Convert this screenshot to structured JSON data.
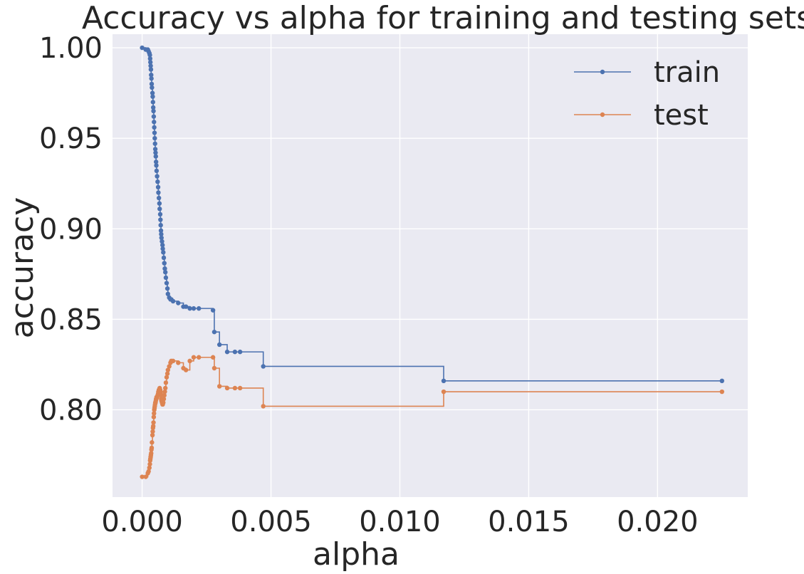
{
  "chart_data": {
    "type": "line",
    "title": "Accuracy vs alpha for training and testing sets",
    "xlabel": "alpha",
    "ylabel": "accuracy",
    "xlim": [
      -0.00115,
      0.0235
    ],
    "ylim": [
      0.7518,
      1.0075
    ],
    "xticks": [
      0.0,
      0.005,
      0.01,
      0.015,
      0.02
    ],
    "xtick_labels": [
      "0.000",
      "0.005",
      "0.010",
      "0.015",
      "0.020"
    ],
    "yticks": [
      0.8,
      0.85,
      0.9,
      0.95,
      1.0
    ],
    "ytick_labels": [
      "0.80",
      "0.85",
      "0.90",
      "0.95",
      "1.00"
    ],
    "grid": true,
    "legend_position": "top-right",
    "drawstyle": "steps-post",
    "series": [
      {
        "name": "train",
        "color": "#4c72b0",
        "x": [
          0.0,
          0.00014,
          0.00022,
          0.00025,
          0.00028,
          0.0003,
          0.00031,
          0.00032,
          0.00033,
          0.00034,
          0.00035,
          0.00036,
          0.00037,
          0.00038,
          0.0004,
          0.00041,
          0.00042,
          0.00043,
          0.00044,
          0.00045,
          0.00046,
          0.00047,
          0.00048,
          0.00049,
          0.0005,
          0.00051,
          0.00052,
          0.00053,
          0.00054,
          0.00055,
          0.00056,
          0.00058,
          0.0006,
          0.00062,
          0.00063,
          0.00065,
          0.00067,
          0.00068,
          0.0007,
          0.00071,
          0.00072,
          0.00073,
          0.00074,
          0.00075,
          0.00077,
          0.00079,
          0.0008,
          0.00082,
          0.00084,
          0.00086,
          0.00088,
          0.0009,
          0.00092,
          0.00095,
          0.00098,
          0.001,
          0.00105,
          0.0011,
          0.00113,
          0.0012,
          0.0014,
          0.0016,
          0.0017,
          0.00185,
          0.002,
          0.0022,
          0.00275,
          0.0028,
          0.003,
          0.0033,
          0.0036,
          0.0038,
          0.0047,
          0.0117,
          0.0225
        ],
        "y": [
          1.0,
          0.999,
          0.999,
          0.998,
          0.997,
          0.996,
          0.994,
          0.992,
          0.99,
          0.988,
          0.985,
          0.983,
          0.98,
          0.978,
          0.975,
          0.973,
          0.97,
          0.967,
          0.965,
          0.962,
          0.959,
          0.956,
          0.953,
          0.95,
          0.947,
          0.944,
          0.942,
          0.94,
          0.937,
          0.935,
          0.932,
          0.929,
          0.926,
          0.923,
          0.92,
          0.917,
          0.914,
          0.911,
          0.908,
          0.905,
          0.902,
          0.899,
          0.897,
          0.895,
          0.893,
          0.891,
          0.889,
          0.887,
          0.884,
          0.881,
          0.878,
          0.876,
          0.873,
          0.87,
          0.867,
          0.864,
          0.862,
          0.861,
          0.861,
          0.86,
          0.859,
          0.857,
          0.857,
          0.856,
          0.856,
          0.856,
          0.855,
          0.843,
          0.836,
          0.832,
          0.832,
          0.832,
          0.824,
          0.816,
          0.816
        ]
      },
      {
        "name": "test",
        "color": "#dd8452",
        "x": [
          0.0,
          0.00014,
          0.00022,
          0.00025,
          0.00028,
          0.0003,
          0.00031,
          0.00032,
          0.00033,
          0.00034,
          0.00035,
          0.00036,
          0.00037,
          0.00038,
          0.0004,
          0.00041,
          0.00042,
          0.00043,
          0.00044,
          0.00045,
          0.00046,
          0.00047,
          0.00048,
          0.00049,
          0.0005,
          0.00051,
          0.00052,
          0.00053,
          0.00054,
          0.00055,
          0.00056,
          0.00058,
          0.0006,
          0.00062,
          0.00063,
          0.00065,
          0.00067,
          0.00068,
          0.0007,
          0.00071,
          0.00072,
          0.00073,
          0.00074,
          0.00075,
          0.00077,
          0.00079,
          0.0008,
          0.00082,
          0.00084,
          0.00086,
          0.00088,
          0.0009,
          0.00092,
          0.00095,
          0.00098,
          0.001,
          0.00105,
          0.0011,
          0.00113,
          0.0012,
          0.0014,
          0.0016,
          0.0017,
          0.00185,
          0.002,
          0.0022,
          0.00275,
          0.0028,
          0.003,
          0.0033,
          0.0036,
          0.0038,
          0.0047,
          0.0117,
          0.0225
        ],
        "y": [
          0.763,
          0.763,
          0.765,
          0.766,
          0.768,
          0.77,
          0.772,
          0.773,
          0.774,
          0.775,
          0.776,
          0.778,
          0.779,
          0.782,
          0.786,
          0.788,
          0.79,
          0.791,
          0.793,
          0.796,
          0.798,
          0.8,
          0.801,
          0.802,
          0.803,
          0.804,
          0.804,
          0.805,
          0.806,
          0.806,
          0.807,
          0.807,
          0.808,
          0.809,
          0.81,
          0.811,
          0.811,
          0.812,
          0.811,
          0.81,
          0.809,
          0.808,
          0.806,
          0.805,
          0.804,
          0.803,
          0.803,
          0.804,
          0.806,
          0.808,
          0.81,
          0.812,
          0.815,
          0.818,
          0.82,
          0.822,
          0.824,
          0.826,
          0.827,
          0.827,
          0.826,
          0.823,
          0.822,
          0.827,
          0.829,
          0.829,
          0.829,
          0.823,
          0.813,
          0.812,
          0.812,
          0.812,
          0.802,
          0.81,
          0.81
        ]
      }
    ]
  }
}
